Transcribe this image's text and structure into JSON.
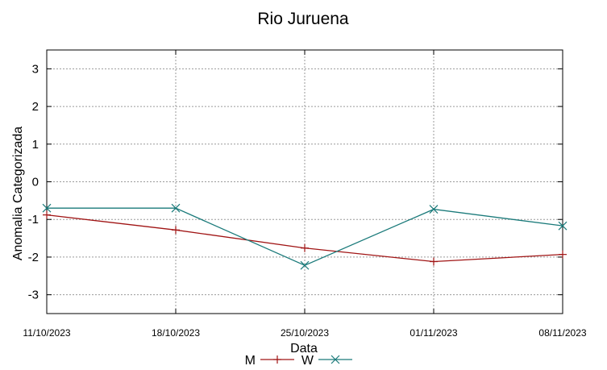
{
  "chart_data": {
    "type": "line",
    "title": "Rio Juruena",
    "xlabel": "Data",
    "ylabel": "Anomalia Categorizada",
    "categories": [
      "11/10/2023",
      "18/10/2023",
      "25/10/2023",
      "01/11/2023",
      "08/11/2023"
    ],
    "ylim": [
      -3.5,
      3.5
    ],
    "yticks": [
      "3",
      "2",
      "1",
      "0",
      "-1",
      "-2",
      "-3"
    ],
    "grid": true,
    "legend_position": "bottom-center",
    "series": [
      {
        "name": "M",
        "color": "#a01414",
        "marker": "plus",
        "values": [
          -0.88,
          -1.28,
          -1.76,
          -2.12,
          -1.93
        ]
      },
      {
        "name": "W",
        "color": "#1a7a7a",
        "marker": "x",
        "values": [
          -0.7,
          -0.7,
          -2.22,
          -0.73,
          -1.17
        ]
      }
    ]
  }
}
